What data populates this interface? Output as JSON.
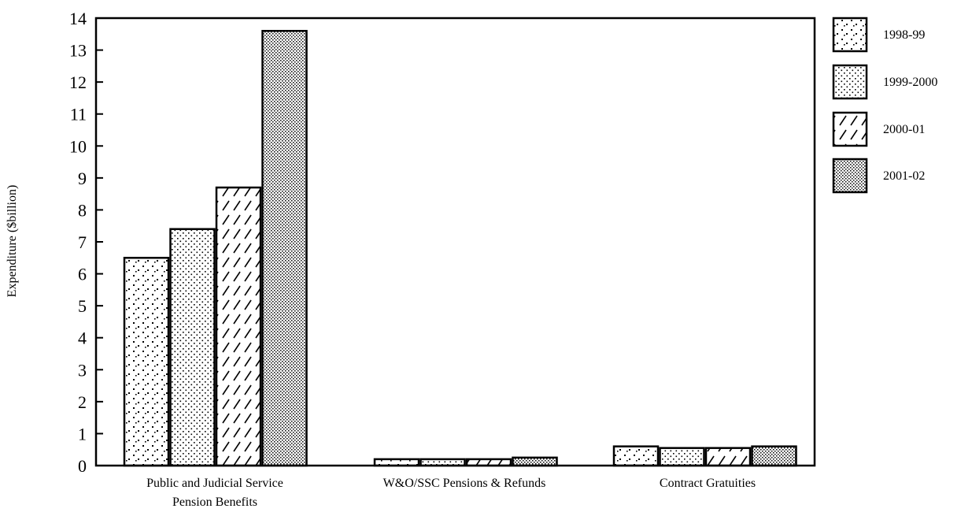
{
  "chart_data": {
    "type": "bar",
    "title": "",
    "xlabel": "",
    "ylabel": "Expenditure ($billion)",
    "ylim": [
      0,
      14
    ],
    "yticks": [
      0,
      1,
      2,
      3,
      4,
      5,
      6,
      7,
      8,
      9,
      10,
      11,
      12,
      13,
      14
    ],
    "categories": [
      [
        "Public and Judicial Service",
        "Pension Benefits"
      ],
      [
        "W&O/SSC Pensions & Refunds"
      ],
      [
        "Contract Gratuities"
      ]
    ],
    "series": [
      {
        "name": "1998-99",
        "pattern": "sparse-dots",
        "values": [
          6.5,
          0.2,
          0.6
        ]
      },
      {
        "name": "1999-2000",
        "pattern": "fine-dots",
        "values": [
          7.4,
          0.2,
          0.55
        ]
      },
      {
        "name": "2000-01",
        "pattern": "diagonal-hatch",
        "values": [
          8.7,
          0.2,
          0.55
        ]
      },
      {
        "name": "2001-02",
        "pattern": "dense-crosshatch",
        "values": [
          13.6,
          0.25,
          0.6
        ]
      }
    ],
    "grid": false,
    "legend_position": "right"
  }
}
